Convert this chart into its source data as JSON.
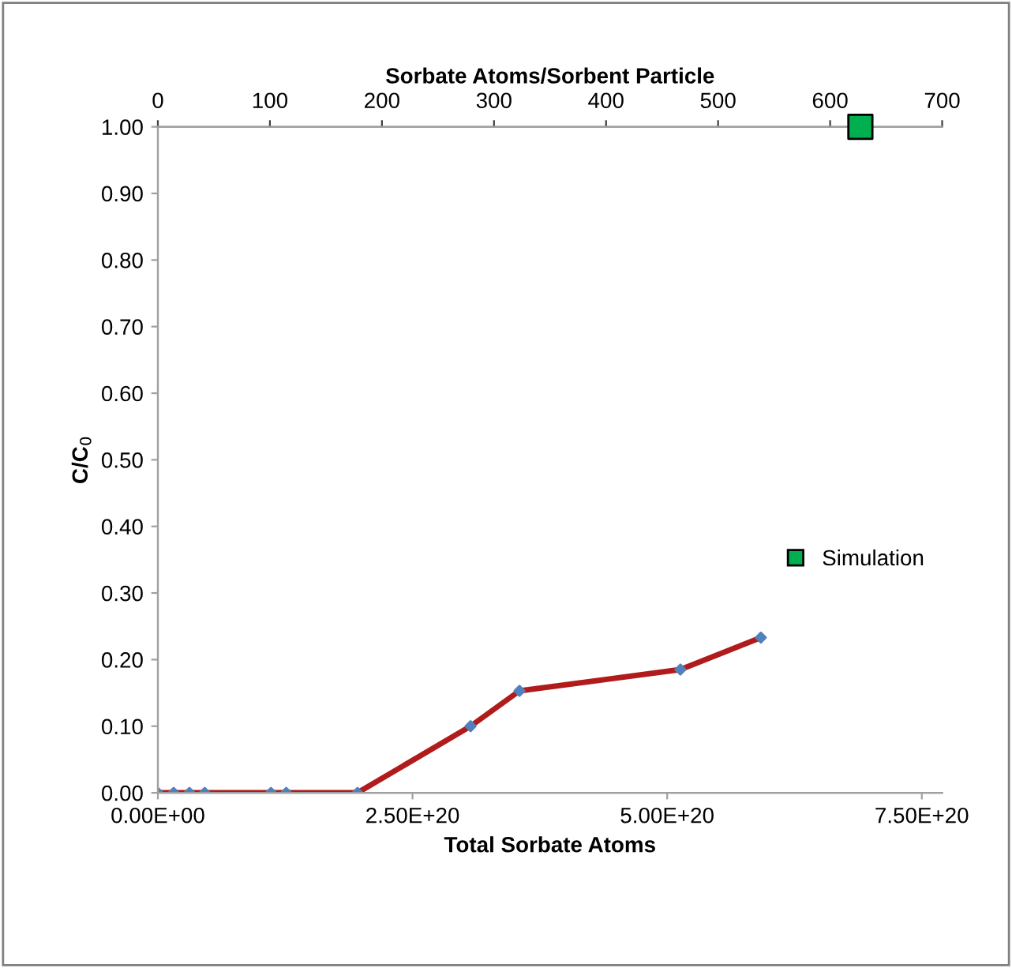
{
  "chart_data": {
    "type": "line",
    "xlabel": "Total Sorbate Atoms",
    "x2label": "Sorbate Atoms/Sorbent Particle",
    "ylabel": "C/C$_{0}$",
    "xlim": [
      0,
      7.7e+20
    ],
    "xticks": [
      {
        "value": 0,
        "label": "0.00E+00"
      },
      {
        "value": 2.5e+20,
        "label": "2.50E+20"
      },
      {
        "value": 5e+20,
        "label": "5.00E+20"
      },
      {
        "value": 7.5e+20,
        "label": "7.50E+20"
      }
    ],
    "x2lim": [
      0,
      700
    ],
    "x2ticks": [
      0,
      100,
      200,
      300,
      400,
      500,
      600,
      700
    ],
    "ylim": [
      0,
      1
    ],
    "yticks": [
      {
        "value": 0,
        "label": "0.00"
      },
      {
        "value": 0.1,
        "label": "0.10"
      },
      {
        "value": 0.2,
        "label": "0.20"
      },
      {
        "value": 0.3,
        "label": "0.30"
      },
      {
        "value": 0.4,
        "label": "0.40"
      },
      {
        "value": 0.5,
        "label": "0.50"
      },
      {
        "value": 0.6,
        "label": "0.60"
      },
      {
        "value": 0.7,
        "label": "0.70"
      },
      {
        "value": 0.8,
        "label": "0.80"
      },
      {
        "value": 0.9,
        "label": "0.90"
      },
      {
        "value": 1,
        "label": "1.00"
      }
    ],
    "grid": false,
    "legend": "right",
    "series": [
      {
        "color": "#b01c1c",
        "marker": "diamond",
        "line_style": "solid",
        "colors": [
          "#4f81bd",
          "#4f81bd",
          "#4f81bd",
          "#4f81bd",
          "#4f81bd",
          "#4f81bd",
          "#4f81bd",
          "#4f81bd",
          "#4f81bd",
          "#4f81bd",
          "#4f81bd"
        ],
        "x": [
          0,
          1.55e+19,
          3.1e+19,
          4.6e+19,
          1.11e+20,
          1.26e+20,
          1.96e+20,
          3.07e+20,
          3.55e+20,
          5.13e+20,
          5.92e+20
        ],
        "values": [
          0,
          0,
          0,
          0,
          0,
          0,
          0,
          0.1,
          0.153,
          0.185,
          0.233
        ]
      },
      {
        "type": "scatter",
        "name": "Simulation",
        "axis": "x2",
        "color": "#00b050",
        "marker": "square",
        "x": [
          627
        ],
        "values": [
          1.0
        ]
      }
    ]
  }
}
